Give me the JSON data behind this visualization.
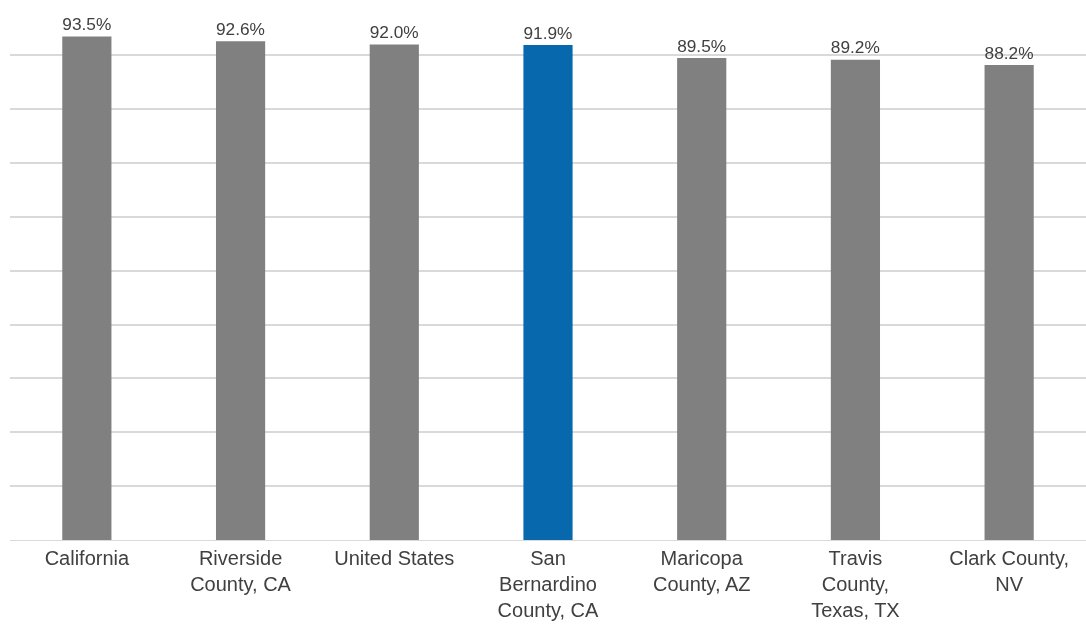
{
  "chart_data": {
    "type": "bar",
    "categories": [
      "California",
      "Riverside County, CA",
      "United States",
      "San Bernardino County, CA",
      "Maricopa County, AZ",
      "Travis County, Texas, TX",
      "Clark County, NV"
    ],
    "values": [
      93.5,
      92.6,
      92.0,
      91.9,
      89.5,
      89.2,
      88.2
    ],
    "colors": [
      "#808080",
      "#808080",
      "#808080",
      "#0868ae",
      "#808080",
      "#808080",
      "#808080"
    ],
    "value_labels": [
      "93.5%",
      "92.6%",
      "92.0%",
      "91.9%",
      "89.5%",
      "89.2%",
      "88.2%"
    ],
    "grid": "y",
    "tick_labels": "x"
  }
}
